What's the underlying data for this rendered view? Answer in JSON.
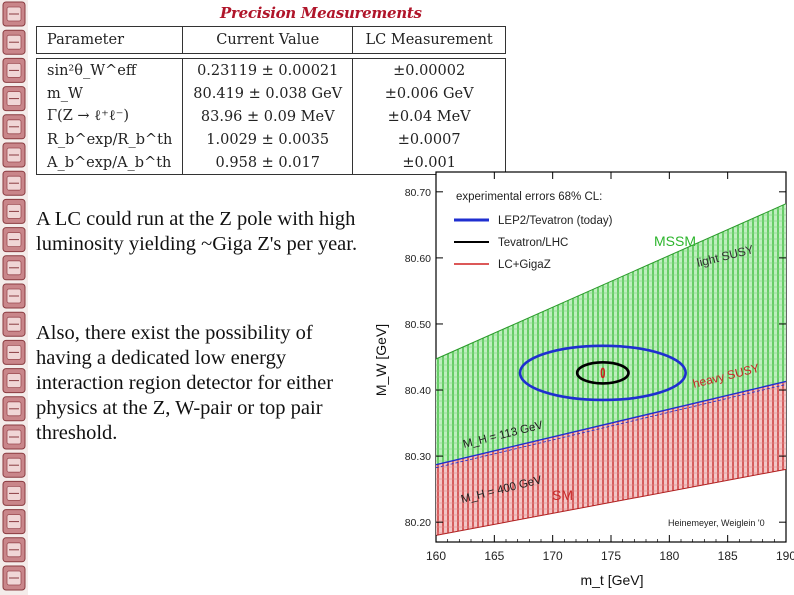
{
  "title": "Precision Measurements",
  "table": {
    "headers": [
      "Parameter",
      "Current Value",
      "LC Measurement"
    ],
    "rows": [
      {
        "param": "sin²θ_W^eff",
        "current": "0.23119 ± 0.00021",
        "lc": "±0.00002"
      },
      {
        "param": "m_W",
        "current": "80.419 ± 0.038 GeV",
        "lc": "±0.006 GeV"
      },
      {
        "param": "Γ(Z → ℓ⁺ℓ⁻)",
        "current": "83.96 ± 0.09 MeV",
        "lc": "±0.04 MeV"
      },
      {
        "param": "R_b^exp/R_b^th",
        "current": "1.0029 ± 0.0035",
        "lc": "±0.0007"
      },
      {
        "param": "A_b^exp/A_b^th",
        "current": "0.958 ± 0.017",
        "lc": "±0.001"
      }
    ]
  },
  "text": {
    "para1": "A LC could run at the Z pole with high luminosity yielding ~Giga Z's per year.",
    "para2": "Also, there exist the possibility of having a dedicated low energy interaction region detector for either physics at the Z, W-pair or top pair threshold."
  },
  "chart_data": {
    "type": "scatter",
    "xlabel": "m_t [GeV]",
    "ylabel": "M_W [GeV]",
    "xlim": [
      160,
      190
    ],
    "ylim": [
      80.17,
      80.73
    ],
    "xticks": [
      160,
      165,
      170,
      175,
      180,
      185,
      190
    ],
    "yticks": [
      80.2,
      80.3,
      80.4,
      80.5,
      80.6,
      80.7
    ],
    "xtick_labels": [
      "160",
      "165",
      "170",
      "175",
      "180",
      "185",
      "190"
    ],
    "ytick_labels": [
      "80.20",
      "80.30",
      "80.40",
      "80.50",
      "80.60",
      "80.70"
    ],
    "legend_title": "experimental errors 68% CL:",
    "legend": [
      {
        "label": "LEP2/Tevatron (today)",
        "color": "#1f2fd0"
      },
      {
        "label": "Tevatron/LHC",
        "color": "#000000"
      },
      {
        "label": "LC+GigaZ",
        "color": "#d02020"
      }
    ],
    "bands": {
      "mssm": {
        "x": [
          160,
          190
        ],
        "upper": [
          80.447,
          80.682
        ],
        "lower": [
          80.287,
          80.413
        ],
        "color": "#3fbf3f"
      },
      "sm": {
        "x": [
          160,
          190
        ],
        "upper": [
          80.287,
          80.413
        ],
        "lower": [
          80.18,
          80.28
        ],
        "color": "#c93030"
      }
    },
    "ellipses": [
      {
        "series": "LEP2/Tevatron (today)",
        "cx": 174.3,
        "cy": 80.426,
        "rx": 7.1,
        "ry": 0.041,
        "color": "#1f2fd0"
      },
      {
        "series": "Tevatron/LHC",
        "cx": 174.3,
        "cy": 80.426,
        "rx": 2.2,
        "ry": 0.016,
        "color": "#000000"
      },
      {
        "series": "LC+GigaZ",
        "cx": 174.3,
        "cy": 80.426,
        "rx": 0.13,
        "ry": 0.007,
        "color": "#d02020"
      }
    ],
    "annotations": {
      "mssm": "MSSM",
      "light_susy": "light SUSY",
      "heavy_susy": "heavy SUSY",
      "mh_113": "M_H = 113 GeV",
      "mh_400": "M_H = 400 GeV",
      "sm": "SM",
      "credit": "Heinemeyer, Weiglein '0"
    },
    "colors": {
      "mssm": "#2db52d",
      "sm": "#c82828"
    }
  }
}
